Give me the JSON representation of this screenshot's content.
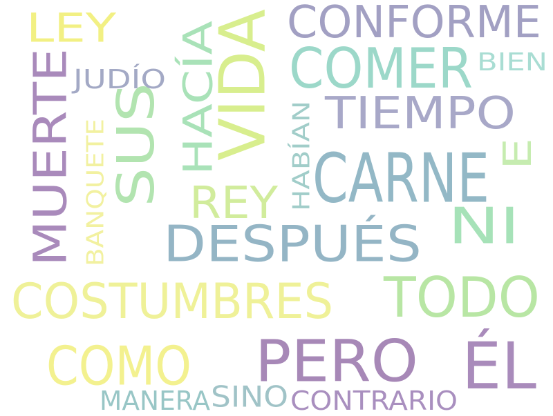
{
  "words": [
    {
      "text": "CONFORME",
      "color": "#a2a0c3",
      "vertical": false
    },
    {
      "text": "LEY",
      "color": "#f2f083",
      "vertical": false
    },
    {
      "text": "VIDA",
      "color": "#d8ee8e",
      "vertical": true
    },
    {
      "text": "HACÍA",
      "color": "#a9e2b8",
      "vertical": true
    },
    {
      "text": "SUS",
      "color": "#b2e4b0",
      "vertical": true
    },
    {
      "text": "COMER",
      "color": "#9cd8c9",
      "vertical": false
    },
    {
      "text": "BIEN",
      "color": "#a9ddd3",
      "vertical": false
    },
    {
      "text": "JUDÍO",
      "color": "#a3a9c5",
      "vertical": false
    },
    {
      "text": "MUERTE",
      "color": "#a98abb",
      "vertical": true
    },
    {
      "text": "TIEMPO",
      "color": "#a8a8c8",
      "vertical": false
    },
    {
      "text": "E",
      "color": "#c6ecb0",
      "vertical": true
    },
    {
      "text": "BANQUETE",
      "color": "#f2f1a0",
      "vertical": true
    },
    {
      "text": "HABÍAN",
      "color": "#a1cdc9",
      "vertical": true
    },
    {
      "text": "CARNE",
      "color": "#93b8c6",
      "vertical": false
    },
    {
      "text": "REY",
      "color": "#d1ec9c",
      "vertical": false
    },
    {
      "text": "NI",
      "color": "#a6e2b8",
      "vertical": false
    },
    {
      "text": "DESPUÉS",
      "color": "#94b5c5",
      "vertical": false
    },
    {
      "text": "COSTUMBRES",
      "color": "#eff198",
      "vertical": false
    },
    {
      "text": "TODO",
      "color": "#b8e6a4",
      "vertical": false
    },
    {
      "text": "COMO",
      "color": "#f3f18f",
      "vertical": false
    },
    {
      "text": "PERO",
      "color": "#a788b7",
      "vertical": false
    },
    {
      "text": "ÉL",
      "color": "#a98bbb",
      "vertical": false
    },
    {
      "text": "MANERA",
      "color": "#98c6c6",
      "vertical": false
    },
    {
      "text": "SINO",
      "color": "#a0c3c7",
      "vertical": false
    },
    {
      "text": "CONTRARIO",
      "color": "#a98fbf",
      "vertical": false
    }
  ]
}
